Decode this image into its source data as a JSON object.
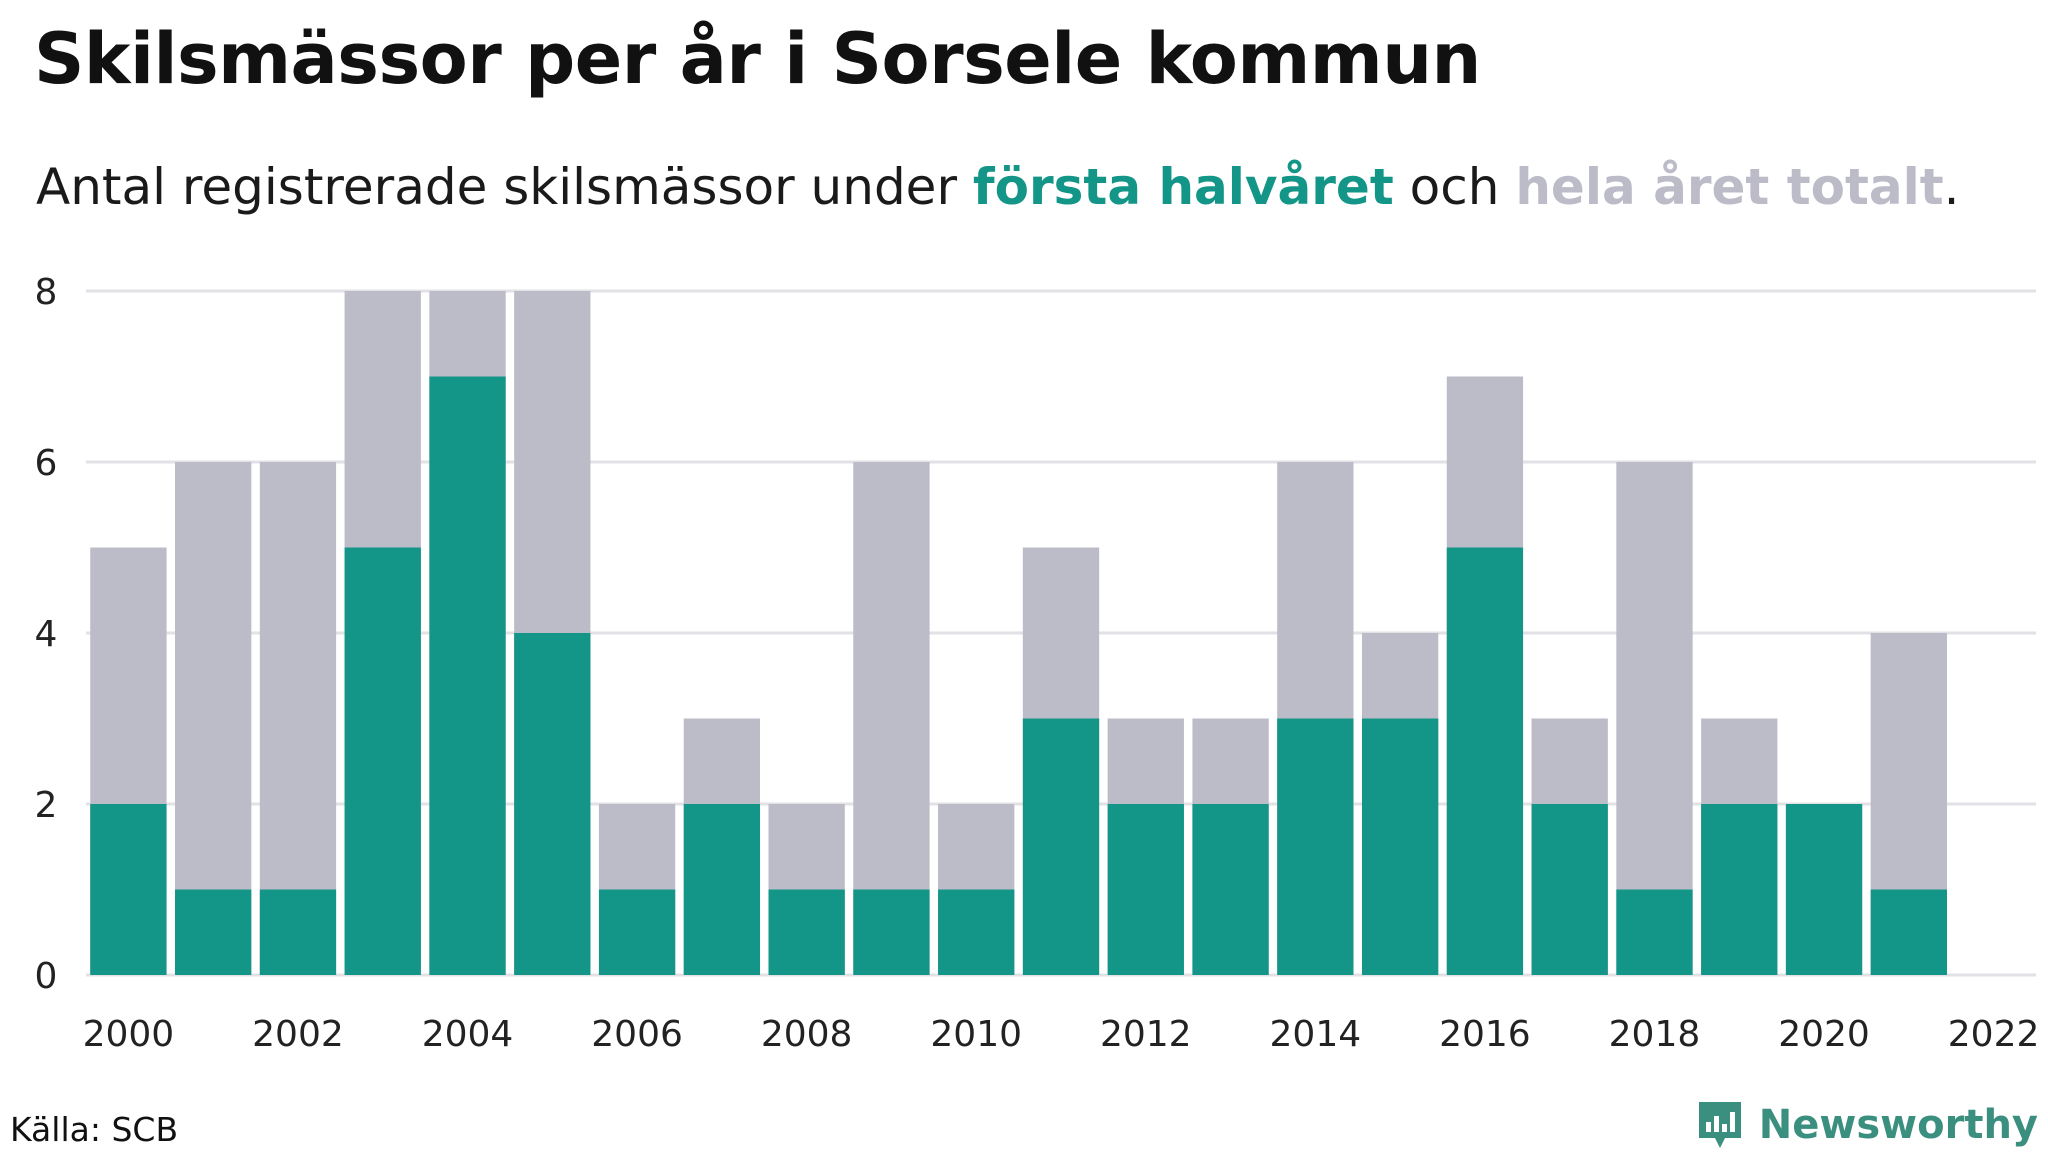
{
  "title": "Skilsmässor per år i Sorsele kommun",
  "subtitle": {
    "prefix": "Antal registrerade skilsmässor under ",
    "first_half": "första halvåret",
    "middle": " och ",
    "whole_year": "hela året totalt",
    "suffix": "."
  },
  "source": "Källa: SCB",
  "brand": "Newsworthy",
  "logo_icon": "newsworthy-chart-logo-icon",
  "colors": {
    "first_half": "#139587",
    "whole_year": "#bcbbc8",
    "grid": "#e2e2e6",
    "brand": "#3a8f7f"
  },
  "chart_data": {
    "type": "bar",
    "stacking": "overlay",
    "categories": [
      2000,
      2001,
      2002,
      2003,
      2004,
      2005,
      2006,
      2007,
      2008,
      2009,
      2010,
      2011,
      2012,
      2013,
      2014,
      2015,
      2016,
      2017,
      2018,
      2019,
      2020,
      2021
    ],
    "series": [
      {
        "key": "whole_year",
        "values": [
          5,
          6,
          6,
          8,
          8,
          8,
          2,
          3,
          2,
          6,
          2,
          5,
          3,
          3,
          6,
          4,
          7,
          3,
          6,
          3,
          2,
          4
        ]
      },
      {
        "key": "first_half",
        "values": [
          2,
          1,
          1,
          5,
          7,
          4,
          1,
          2,
          1,
          1,
          1,
          3,
          2,
          2,
          3,
          3,
          5,
          2,
          1,
          2,
          2,
          1
        ]
      }
    ],
    "x_ticks": [
      2000,
      2002,
      2004,
      2006,
      2008,
      2010,
      2012,
      2014,
      2016,
      2018,
      2020,
      2022
    ],
    "y_ticks": [
      0,
      2,
      4,
      6,
      8
    ],
    "ylim": [
      0,
      8
    ],
    "xlim": [
      1999.5,
      2022.5
    ],
    "grid": true,
    "legend": "in subtitle"
  }
}
